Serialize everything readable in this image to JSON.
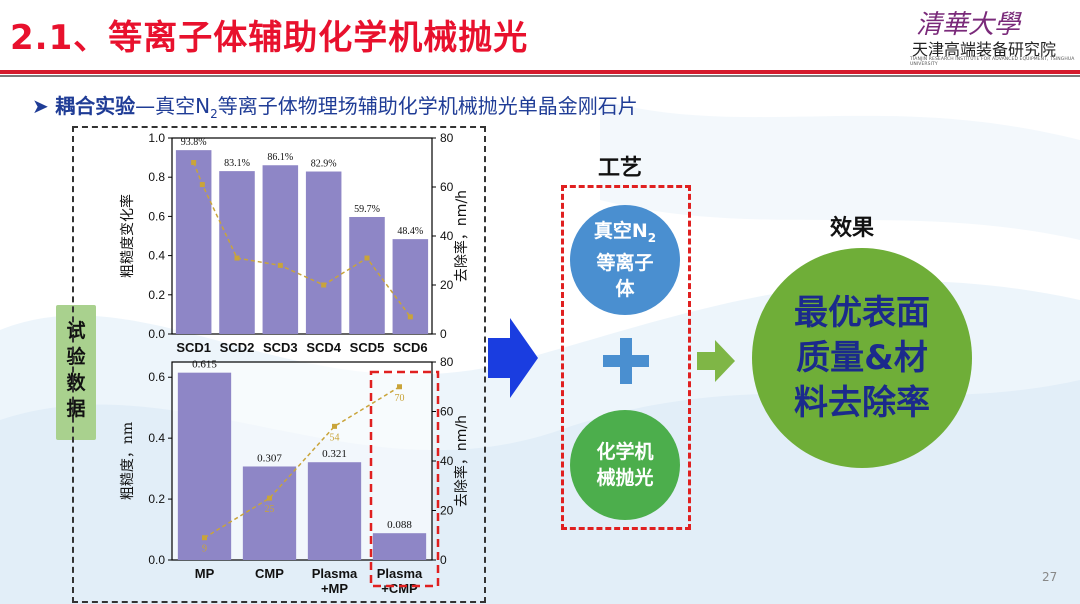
{
  "header": {
    "title": "2.1、等离子体辅助化学机械抛光",
    "logo_text": "清華大學",
    "institute": "天津高端装备研究院",
    "institute_en": "TIANJIN RESEARCH INSTITUTE FOR ADVANCED EQUIPMENT, TSINGHUA UNIVERSITY"
  },
  "heading": {
    "bullet": "➤",
    "bold": "耦合实验",
    "dash": "—",
    "pre": "真空N",
    "sub": "2",
    "post": "等离子体物理场辅助化学机械抛光单晶金刚石片"
  },
  "side_label": "试验数据",
  "colors": {
    "bar": "#8e86c6",
    "trend": "#c9a43a",
    "red": "#e02020",
    "blue": "#4a8fd0",
    "green": "#4cae4c"
  },
  "chart_data": [
    {
      "type": "bar",
      "categories": [
        "SCD1",
        "SCD2",
        "SCD3",
        "SCD4",
        "SCD5",
        "SCD6"
      ],
      "values": [
        0.938,
        0.831,
        0.861,
        0.829,
        0.597,
        0.484
      ],
      "bar_labels": [
        "93.8%",
        "83.1%",
        "86.1%",
        "82.9%",
        "59.7%",
        "48.4%"
      ],
      "ylabel": "粗糙度变化率",
      "ylim": [
        0,
        1.0
      ],
      "yticks": [
        "0.0",
        "0.2",
        "0.4",
        "0.6",
        "0.8",
        "1.0"
      ],
      "y2label": "去除率，nm/h",
      "y2lim": [
        0,
        80
      ],
      "y2ticks": [
        "0",
        "20",
        "40",
        "60",
        "80"
      ],
      "line_values": [
        70,
        61,
        31,
        28,
        20,
        31,
        7
      ],
      "line_x": [
        0,
        0.2,
        1,
        2,
        3,
        4,
        5
      ]
    },
    {
      "type": "bar",
      "categories": [
        "MP",
        "CMP",
        "Plasma\n+MP",
        "Plasma\n+CMP"
      ],
      "values": [
        0.615,
        0.307,
        0.321,
        0.088
      ],
      "bar_labels": [
        "0.615",
        "0.307",
        "0.321",
        "0.088"
      ],
      "ylabel": "粗糙度，nm",
      "ylim": [
        0,
        0.65
      ],
      "yticks": [
        "0.0",
        "0.2",
        "0.4",
        "0.6"
      ],
      "y2label": "去除率，nm/h",
      "y2lim": [
        0,
        80
      ],
      "y2ticks": [
        "0",
        "20",
        "40",
        "60",
        "80"
      ],
      "line_values": [
        9,
        25,
        54,
        70
      ],
      "line_labels": [
        "9",
        "25",
        "54",
        "70"
      ]
    }
  ],
  "process": {
    "label": "工艺",
    "circle1_pre": "真空N",
    "circle1_sub": "2",
    "circle1_line2": "等离子",
    "circle1_line3": "体",
    "plus": "+",
    "circle2_line1": "化学机",
    "circle2_line2": "械抛光"
  },
  "effect": {
    "label": "效果",
    "line1": "最优表面",
    "line2": "质量&材",
    "line3": "料去除率"
  },
  "page_number": "27"
}
